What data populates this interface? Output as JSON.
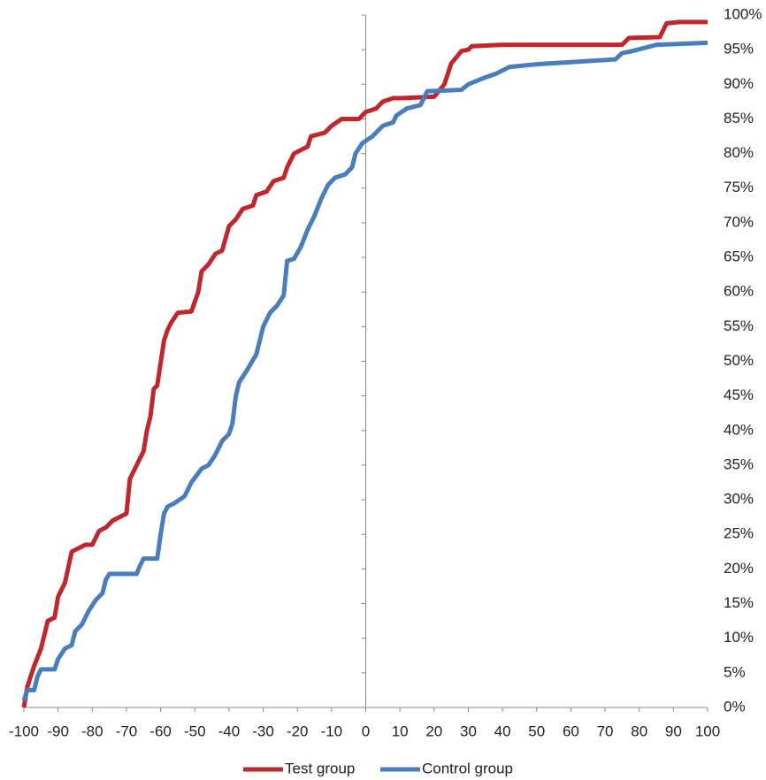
{
  "chart_data": {
    "type": "line",
    "xlim": [
      -100,
      100
    ],
    "xticks": [
      -100,
      -90,
      -80,
      -70,
      -60,
      -50,
      -40,
      -30,
      -20,
      -10,
      0,
      10,
      20,
      30,
      40,
      50,
      60,
      70,
      80,
      90,
      100
    ],
    "ylim": [
      0,
      100
    ],
    "yticks": [
      {
        "value": 0,
        "label": "0%"
      },
      {
        "value": 5,
        "label": "5%"
      },
      {
        "value": 10,
        "label": "10%"
      },
      {
        "value": 15,
        "label": "15%"
      },
      {
        "value": 20,
        "label": "20%"
      },
      {
        "value": 25,
        "label": "25%"
      },
      {
        "value": 30,
        "label": "30%"
      },
      {
        "value": 35,
        "label": "35%"
      },
      {
        "value": 40,
        "label": "40%"
      },
      {
        "value": 45,
        "label": "45%"
      },
      {
        "value": 50,
        "label": "50%"
      },
      {
        "value": 55,
        "label": "55%"
      },
      {
        "value": 60,
        "label": "60%"
      },
      {
        "value": 65,
        "label": "65%"
      },
      {
        "value": 70,
        "label": "70%"
      },
      {
        "value": 75,
        "label": "75%"
      },
      {
        "value": 80,
        "label": "80%"
      },
      {
        "value": 85,
        "label": "85%"
      },
      {
        "value": 90,
        "label": "90%"
      },
      {
        "value": 95,
        "label": "95%"
      },
      {
        "value": 100,
        "label": "100%"
      }
    ],
    "legend": "bottom",
    "series": [
      {
        "name": "Test group",
        "color": "#c0272d",
        "x": [
          -100,
          -99,
          -97,
          -95,
          -93,
          -91,
          -90,
          -88,
          -86,
          -84,
          -82,
          -80,
          -78,
          -76,
          -74,
          -70,
          -69,
          -67,
          -65,
          -64,
          -63,
          -62,
          -61,
          -59,
          -58,
          -57,
          -55,
          -51,
          -49,
          -48,
          -46,
          -44,
          -42,
          -40,
          -38,
          -36,
          -33,
          -32,
          -29,
          -27,
          -24,
          -23,
          -21,
          -19,
          -17,
          -16,
          -12,
          -10,
          -7,
          -2,
          0,
          3,
          5,
          8,
          10,
          20,
          23,
          25,
          28,
          30,
          31,
          40,
          75,
          77,
          86,
          88,
          92,
          100
        ],
        "values": [
          0,
          3,
          6,
          8.5,
          12.5,
          13,
          16,
          18,
          22.5,
          23,
          23.5,
          23.5,
          25.5,
          26,
          27,
          28,
          33,
          35,
          37,
          40,
          42,
          46,
          46.5,
          53,
          54.5,
          55.5,
          57,
          57.2,
          60,
          63,
          64,
          65.5,
          66,
          69.5,
          70.5,
          72,
          72.5,
          74,
          74.5,
          76,
          76.5,
          78,
          80,
          80.5,
          81,
          82.5,
          83,
          84,
          85,
          85,
          86,
          86.5,
          87.5,
          88,
          88,
          88.2,
          90,
          93,
          94.8,
          95,
          95.5,
          95.7,
          95.7,
          96.7,
          96.8,
          98.8,
          99,
          99
        ]
      },
      {
        "name": "Control group",
        "color": "#4a7ebb",
        "x": [
          -100,
          -99,
          -97,
          -96,
          -95,
          -91,
          -90,
          -88,
          -86,
          -85,
          -83,
          -81,
          -79,
          -77,
          -76,
          -75,
          -67,
          -66,
          -65,
          -61,
          -60,
          -59,
          -58,
          -56,
          -53,
          -51,
          -48,
          -46,
          -44,
          -42,
          -40,
          -39,
          -38,
          -37,
          -35,
          -32,
          -31,
          -30,
          -28,
          -26,
          -24,
          -23,
          -21,
          -19,
          -17,
          -15,
          -13,
          -11,
          -9,
          -6,
          -4,
          -3,
          -1,
          2,
          5,
          8,
          9,
          12,
          16,
          18,
          28,
          30,
          35,
          38,
          42,
          50,
          60,
          73,
          75,
          78,
          85,
          100
        ],
        "values": [
          1,
          2.5,
          2.5,
          4.5,
          5.5,
          5.5,
          7,
          8.5,
          9,
          11,
          12,
          14,
          15.5,
          16.5,
          18.5,
          19.3,
          19.3,
          20.5,
          21.5,
          21.5,
          25,
          28,
          29,
          29.5,
          30.5,
          32.5,
          34.5,
          35,
          36.5,
          38.5,
          39.5,
          41,
          45,
          47,
          48.5,
          51,
          53,
          55,
          57,
          58,
          59.5,
          64.5,
          64.8,
          66.5,
          69,
          71,
          73.5,
          75.5,
          76.5,
          77,
          78,
          80,
          81.5,
          82.5,
          84,
          84.5,
          85.5,
          86.5,
          87,
          89,
          89.2,
          90,
          91,
          91.5,
          92.5,
          92.9,
          93.2,
          93.6,
          94.5,
          94.8,
          95.7,
          96
        ]
      }
    ]
  }
}
